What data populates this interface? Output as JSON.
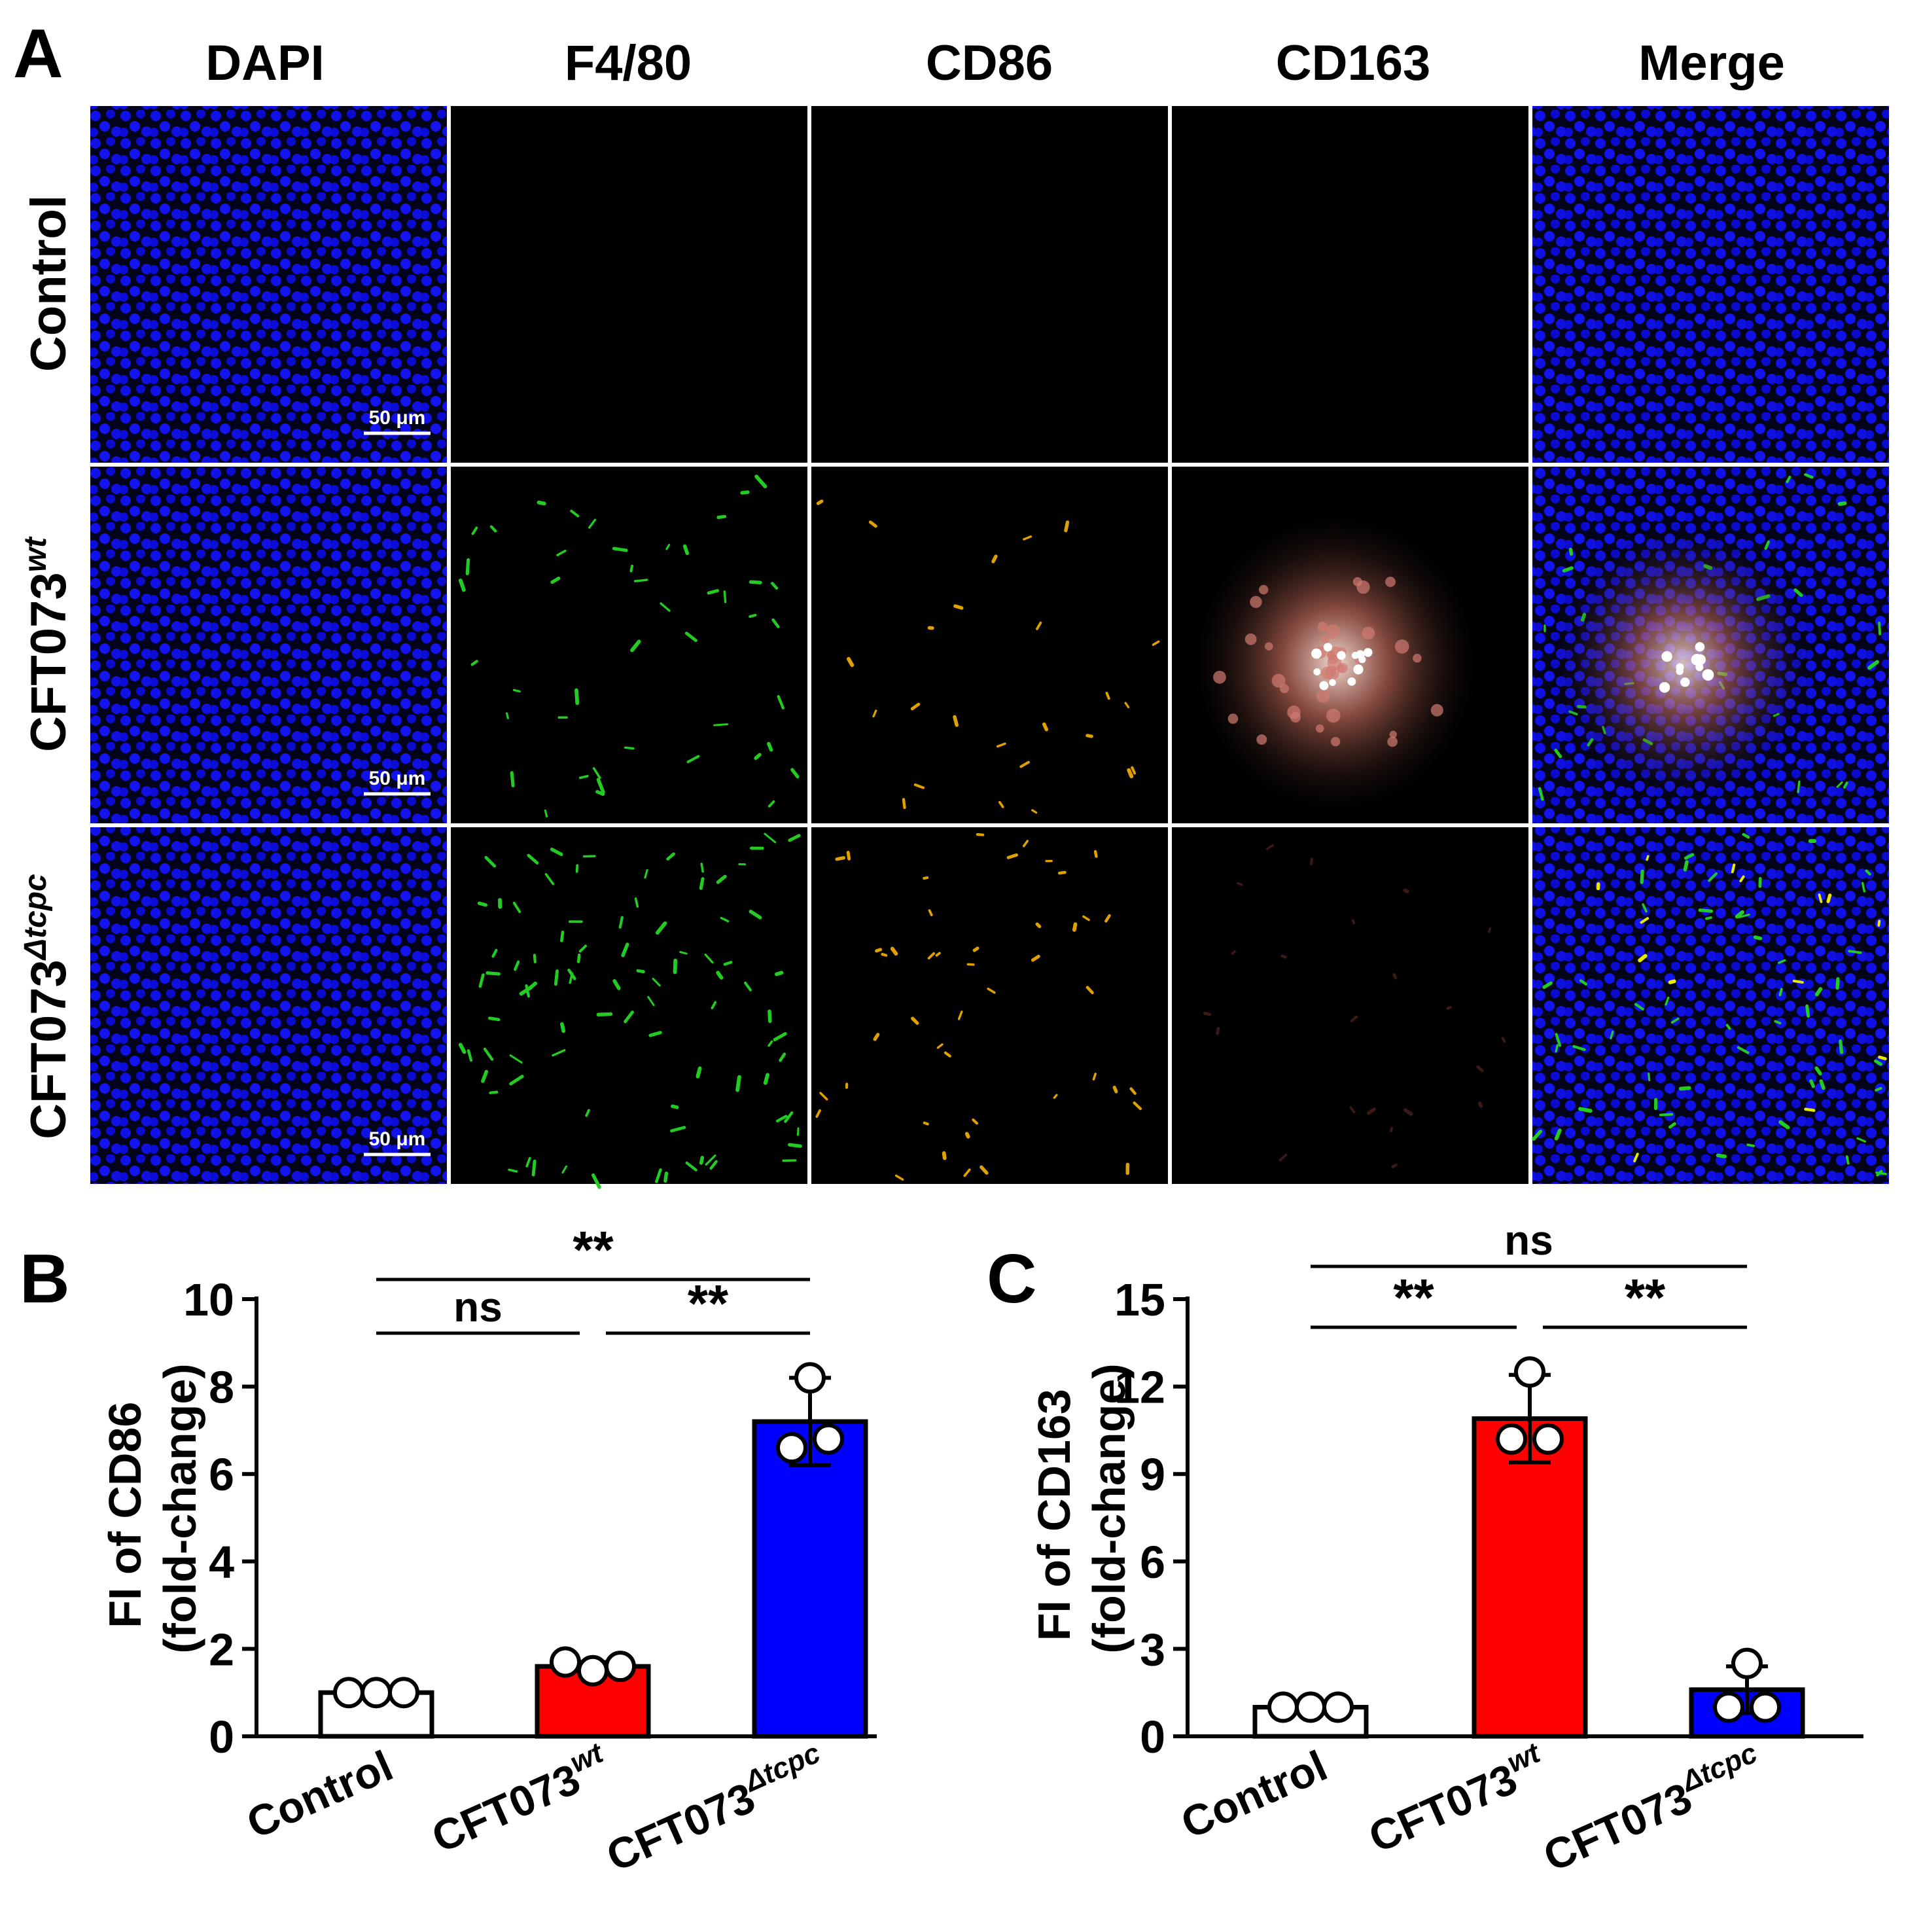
{
  "panel_a": {
    "letter": "A",
    "column_headers": [
      "DAPI",
      "F4/80",
      "CD86",
      "CD163",
      "Merge"
    ],
    "rows": [
      {
        "base": "Control",
        "sup": ""
      },
      {
        "base": "CFT073",
        "sup": "wt"
      },
      {
        "base": "CFT073",
        "sup": "Δtcpc"
      }
    ],
    "scale_bar_label": "50 μm",
    "colors": {
      "dapi": "#0a0ff0",
      "f480": "#22cc22",
      "cd86": "#e0a000",
      "cd163": "#ffb0a0"
    }
  },
  "chart_data": [
    {
      "panel": "B",
      "type": "bar",
      "ylabel_line1": "FI of CD86",
      "ylabel_line2": "(fold-change)",
      "ylim": [
        0,
        10
      ],
      "yticks": [
        "0",
        "2",
        "4",
        "6",
        "8",
        "10"
      ],
      "ytick_values": [
        0,
        2,
        4,
        6,
        8,
        10
      ],
      "categories": [
        {
          "base": "Control",
          "sup": ""
        },
        {
          "base": "CFT073",
          "sup": "wt"
        },
        {
          "base": "CFT073",
          "sup": "Δtcpc"
        }
      ],
      "values": [
        1.0,
        1.6,
        7.2
      ],
      "errors": [
        0.0,
        0.1,
        1.0
      ],
      "points": [
        [
          1.0,
          1.0,
          1.0
        ],
        [
          1.7,
          1.5,
          1.6
        ],
        [
          8.2,
          6.6,
          6.8
        ]
      ],
      "bar_colors": [
        "#ffffff",
        "#ff0000",
        "#0000ff"
      ],
      "significance": [
        {
          "from": 0,
          "to": 1,
          "label": "ns"
        },
        {
          "from": 1,
          "to": 2,
          "label": "**"
        },
        {
          "from": 0,
          "to": 2,
          "label": "**"
        }
      ]
    },
    {
      "panel": "C",
      "type": "bar",
      "ylabel_line1": "FI of CD163",
      "ylabel_line2": "(fold-change)",
      "ylim": [
        0,
        15
      ],
      "yticks": [
        "0",
        "3",
        "6",
        "9",
        "12",
        "15"
      ],
      "ytick_values": [
        0,
        3,
        6,
        9,
        12,
        15
      ],
      "categories": [
        {
          "base": "Control",
          "sup": ""
        },
        {
          "base": "CFT073",
          "sup": "wt"
        },
        {
          "base": "CFT073",
          "sup": "Δtcpc"
        }
      ],
      "values": [
        1.0,
        10.9,
        1.6
      ],
      "errors": [
        0.0,
        1.5,
        0.8
      ],
      "points": [
        [
          1.0,
          1.0,
          1.0
        ],
        [
          12.5,
          10.2,
          10.2
        ],
        [
          2.5,
          1.0,
          1.0
        ]
      ],
      "bar_colors": [
        "#ffffff",
        "#ff0000",
        "#0000ff"
      ],
      "significance": [
        {
          "from": 0,
          "to": 1,
          "label": "**"
        },
        {
          "from": 1,
          "to": 2,
          "label": "**"
        },
        {
          "from": 0,
          "to": 2,
          "label": "ns"
        }
      ]
    }
  ]
}
